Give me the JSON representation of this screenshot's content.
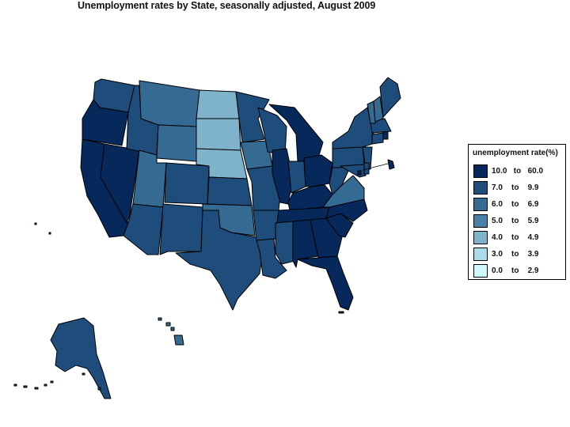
{
  "title": "Unemployment rates by State, seasonally adjusted,  August  2009",
  "legend": {
    "title": "unemployment rate(%)",
    "items": [
      {
        "label": "10.0   to   60.0",
        "color": "#06285b"
      },
      {
        "label": "7.0    to    9.9",
        "color": "#1f4d7b"
      },
      {
        "label": "6.0    to    6.9",
        "color": "#356a93"
      },
      {
        "label": "5.0    to    5.9",
        "color": "#4b81a6"
      },
      {
        "label": "4.0    to    4.9",
        "color": "#7fb2cb"
      },
      {
        "label": "3.0    to    3.9",
        "color": "#a9dbe8"
      },
      {
        "label": "0.0    to    2.9",
        "color": "#cffafd"
      }
    ]
  },
  "map_data": {
    "region": "United States",
    "categories": [
      "10.0 to 60.0",
      "7.0 to 9.9",
      "6.0 to 6.9",
      "5.0 to 5.9",
      "4.0 to 4.9",
      "3.0 to 3.9",
      "0.0 to 2.9"
    ],
    "states": {
      "WA": "7.0 to 9.9",
      "OR": "10.0 to 60.0",
      "CA": "10.0 to 60.0",
      "NV": "10.0 to 60.0",
      "ID": "7.0 to 9.9",
      "MT": "6.0 to 6.9",
      "WY": "6.0 to 6.9",
      "UT": "6.0 to 6.9",
      "AZ": "7.0 to 9.9",
      "CO": "7.0 to 9.9",
      "NM": "7.0 to 9.9",
      "ND": "4.0 to 4.9",
      "SD": "4.0 to 4.9",
      "NE": "4.0 to 4.9",
      "KS": "7.0 to 9.9",
      "OK": "6.0 to 6.9",
      "TX": "7.0 to 9.9",
      "MN": "7.0 to 9.9",
      "IA": "6.0 to 6.9",
      "MO": "7.0 to 9.9",
      "AR": "7.0 to 9.9",
      "LA": "7.0 to 9.9",
      "WI": "7.0 to 9.9",
      "IL": "10.0 to 60.0",
      "MI": "10.0 to 60.0",
      "IN": "7.0 to 9.9",
      "OH": "10.0 to 60.0",
      "KY": "10.0 to 60.0",
      "TN": "10.0 to 60.0",
      "MS": "7.0 to 9.9",
      "AL": "10.0 to 60.0",
      "GA": "10.0 to 60.0",
      "FL": "10.0 to 60.0",
      "SC": "10.0 to 60.0",
      "NC": "10.0 to 60.0",
      "VA": "6.0 to 6.9",
      "WV": "7.0 to 9.9",
      "PA": "7.0 to 9.9",
      "NY": "7.0 to 9.9",
      "VT": "6.0 to 6.9",
      "NH": "6.0 to 6.9",
      "ME": "7.0 to 9.9",
      "MA": "7.0 to 9.9",
      "RI": "10.0 to 60.0",
      "CT": "7.0 to 9.9",
      "NJ": "7.0 to 9.9",
      "DE": "7.0 to 9.9",
      "MD": "7.0 to 9.9",
      "DC": "10.0 to 60.0",
      "AK": "7.0 to 9.9",
      "HI": "6.0 to 6.9"
    }
  }
}
